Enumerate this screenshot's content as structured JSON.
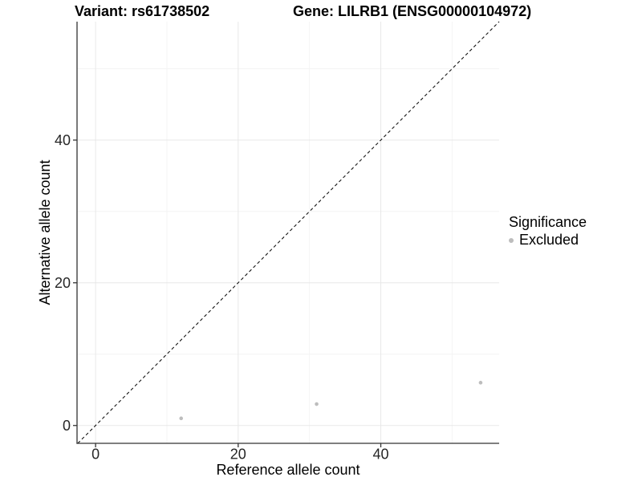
{
  "header": {
    "variant_title": "Variant: rs61738502",
    "gene_title": "Gene: LILRB1 (ENSG00000104972)"
  },
  "chart_data": {
    "type": "scatter",
    "title": "Variant: rs61738502    Gene: LILRB1 (ENSG00000104972)",
    "xlabel": "Reference allele count",
    "ylabel": "Alternative allele count",
    "xlim": [
      -2.6,
      56.6
    ],
    "ylim": [
      -2.5,
      56.6
    ],
    "x_ticks": [
      0,
      20,
      40
    ],
    "y_ticks": [
      0,
      20,
      40
    ],
    "x_minor_ticks": [
      10,
      30,
      50
    ],
    "y_minor_ticks": [
      10,
      30,
      50
    ],
    "grid": true,
    "series": [
      {
        "name": "Excluded",
        "color": "#bdbdbd",
        "points": [
          {
            "x": 12,
            "y": 1
          },
          {
            "x": 31,
            "y": 3
          },
          {
            "x": 54,
            "y": 6
          }
        ]
      }
    ],
    "reference_line": {
      "type": "identity",
      "style": "dashed",
      "color": "#000000"
    },
    "legend": {
      "title": "Significance",
      "position": "right",
      "items": [
        {
          "label": "Excluded",
          "color": "#bdbdbd"
        }
      ]
    },
    "colors": {
      "axis_line": "#333333",
      "tick_label": "#262626",
      "grid_major": "#e8e8e8",
      "grid_minor": "#f4f4f4",
      "background": "#ffffff"
    }
  }
}
